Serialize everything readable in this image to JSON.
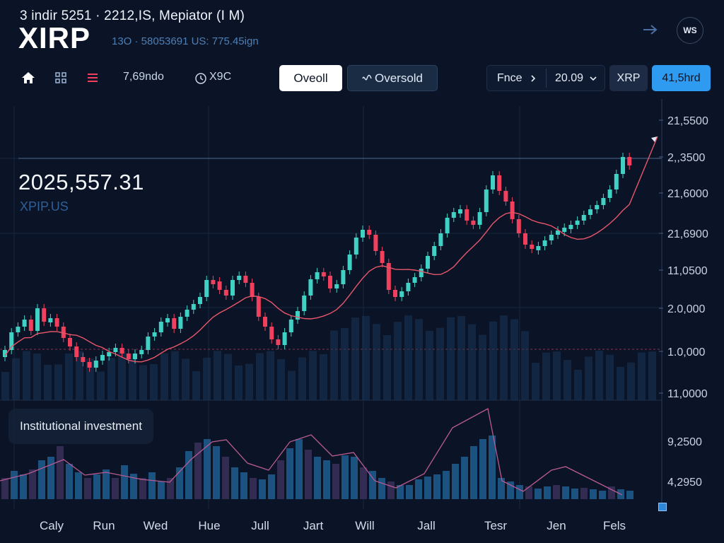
{
  "header": {
    "subtitle": "3 indir 5251 · 2212,IS, Mepiator (I M)",
    "title": "XIRP",
    "meta": "13O · 58053691 US: 775.45ign",
    "profile_label": "WS"
  },
  "toolbar": {
    "stat1": "7,69ndo",
    "stat2": "X9C",
    "overall_label": "Oveoll",
    "oversold_label": "Oversold",
    "price_label": "Fnce",
    "price_value": "20.09",
    "symbol_chip": "XRP",
    "blue_chip": "41,5hrd"
  },
  "price": {
    "value": "2025,557.31",
    "symbol": "XPIP.US"
  },
  "indicator_label": "Institutional investment",
  "colors": {
    "background": "#0b1426",
    "up": "#3fd1c4",
    "down": "#f0405e",
    "ma": "#e8566a",
    "accent": "#2e9bf0",
    "volume": "#1e6ea8"
  },
  "icons": {
    "home": "home-icon",
    "grid": "grid-icon",
    "menu": "menu-icon",
    "clock": "clock-icon",
    "arrow": "arrow-right-icon",
    "chevron_right": "chevron-right-icon",
    "chevron_down": "chevron-down-icon"
  },
  "chart_data": {
    "type": "candlestick",
    "y_axis_labels": [
      "21,5500",
      "2,,3500",
      "21,6000",
      "21,6900",
      "11,0500",
      "2.0,000",
      "1.0,000",
      "11,0000"
    ],
    "indicator_axis_labels": [
      "9,2500",
      "4,2950"
    ],
    "x_axis_labels": [
      "Caly",
      "Run",
      "Wed",
      "Hue",
      "Jull",
      "Jart",
      "Will",
      "Jall",
      "Tesr",
      "Jen",
      "Fels"
    ]
  }
}
